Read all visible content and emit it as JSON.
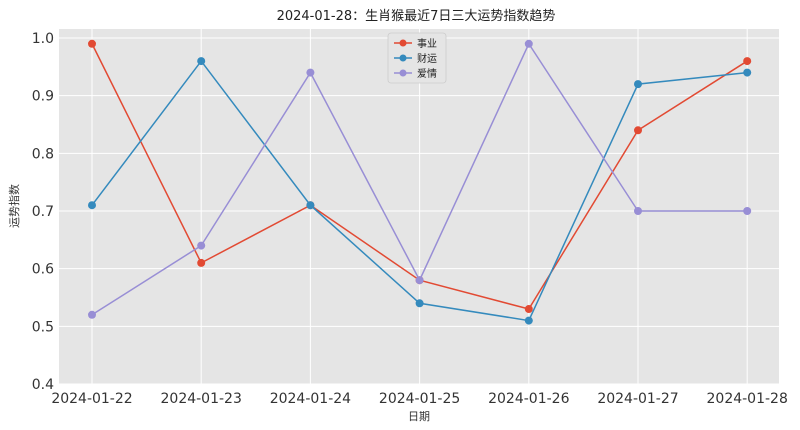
{
  "chart_data": {
    "type": "line",
    "title": "2024-01-28：生肖猴最近7日三大运势指数趋势",
    "xlabel": "日期",
    "ylabel": "运势指数",
    "categories": [
      "2024-01-22",
      "2024-01-23",
      "2024-01-24",
      "2024-01-25",
      "2024-01-26",
      "2024-01-27",
      "2024-01-28"
    ],
    "ylim": [
      0.4,
      1.0
    ],
    "yticks": [
      "0.4",
      "0.5",
      "0.6",
      "0.7",
      "0.8",
      "0.9",
      "1.0"
    ],
    "grid": true,
    "legend_position": "top-center",
    "series": [
      {
        "name": "事业",
        "color": "#e24a33",
        "values": [
          0.99,
          0.61,
          0.71,
          0.58,
          0.53,
          0.84,
          0.96
        ]
      },
      {
        "name": "财运",
        "color": "#348abd",
        "values": [
          0.71,
          0.96,
          0.71,
          0.54,
          0.51,
          0.92,
          0.94
        ]
      },
      {
        "name": "爱情",
        "color": "#988ed5",
        "values": [
          0.52,
          0.64,
          0.94,
          0.58,
          0.99,
          0.7,
          0.7
        ]
      }
    ]
  }
}
